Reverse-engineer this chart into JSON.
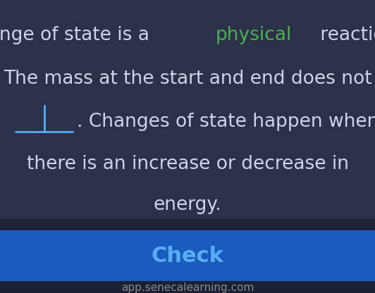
{
  "bg_color": "#2b3149",
  "bg_color_dark": "#252a40",
  "button_color": "#1a5bbf",
  "button_text_color": "#5aacf5",
  "button_text": "Check",
  "footer_color": "#1e2336",
  "footer_text": "app.senecalearning.com",
  "footer_text_color": "#888888",
  "text_color": "#d0d4e8",
  "highlight_color": "#4caf50",
  "underline_color": "#5aacf5",
  "line1": "A change of state is a ",
  "line1_highlight": "physical",
  "line1_end": " reaction.",
  "line2": "The mass at the start and end does not",
  "line3_end": ". Changes of state happen when",
  "line4": "there is an increase or decrease in",
  "line5": "energy.",
  "main_font_size": 19,
  "button_font_size": 22,
  "footer_font_size": 11
}
